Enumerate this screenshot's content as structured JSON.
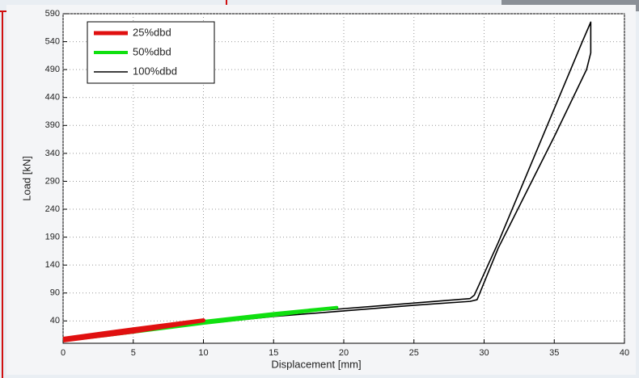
{
  "chart_data": {
    "type": "line",
    "x_label": "Displacement [mm]",
    "y_label": "Load [kN]",
    "xlim": [
      0,
      40
    ],
    "xticks": [
      0,
      5,
      10,
      15,
      20,
      25,
      30,
      35,
      40
    ],
    "ylim": [
      0,
      590
    ],
    "yticks": [
      40,
      90,
      140,
      190,
      240,
      290,
      340,
      390,
      440,
      490,
      540,
      590
    ],
    "grid": true,
    "legend": "upper left",
    "series": [
      {
        "name": "25%dbd",
        "color": "#e01010",
        "x": [
          0,
          5,
          10,
          5,
          0
        ],
        "values": [
          8,
          25,
          41,
          21,
          5
        ]
      },
      {
        "name": "50%dbd",
        "color": "#10e010",
        "x": [
          0,
          5,
          10,
          15,
          19.5,
          15,
          10,
          5,
          0
        ],
        "values": [
          8,
          24,
          39,
          53,
          64,
          50,
          36,
          20,
          5
        ]
      },
      {
        "name": "100%dbd",
        "color": "#000000",
        "x": [
          0,
          5,
          10,
          15,
          20,
          25,
          29,
          29.3,
          31,
          33,
          35,
          37,
          37.6,
          37.6,
          37.3,
          35,
          33,
          31,
          29.5,
          29,
          25,
          20,
          15,
          10,
          5,
          0
        ],
        "values": [
          8,
          24,
          38,
          52,
          62,
          72,
          80,
          86,
          180,
          300,
          420,
          540,
          575,
          520,
          490,
          370,
          270,
          170,
          78,
          75,
          68,
          58,
          48,
          35,
          20,
          5
        ]
      }
    ]
  }
}
